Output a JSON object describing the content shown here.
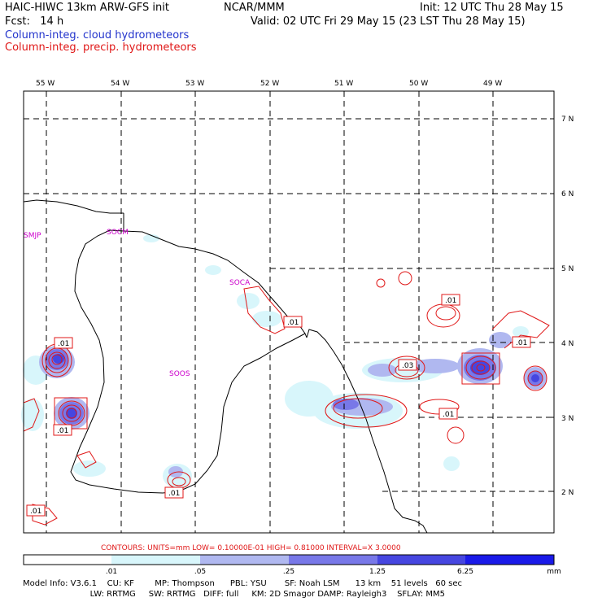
{
  "header": {
    "title": "HAIC-HIWC 13km ARW-GFS init",
    "org": "NCAR/MMM",
    "init": "Init: 12 UTC Thu 28 May 15",
    "fcst": "Fcst:   14 h",
    "valid": "Valid: 02 UTC Fri 29 May 15 (23 LST Thu 28 May 15)",
    "legend_cloud": "Column-integ. cloud hydrometeors",
    "legend_precip": "Column-integ. precip. hydrometeors"
  },
  "axes": {
    "lon_labels": [
      "55 W",
      "54 W",
      "53 W",
      "52 W",
      "51 W",
      "50 W",
      "49 W"
    ],
    "lat_labels": [
      "7 N",
      "6 N",
      "5 N",
      "4 N",
      "3 N",
      "2 N"
    ]
  },
  "stations": [
    "SMJP",
    "SOCM",
    "SOCA",
    "SOOS"
  ],
  "contour_labels": [
    ".01",
    ".01",
    ".01",
    ".01",
    ".03",
    ".01",
    ".01",
    ".01",
    ".01"
  ],
  "contours_info": "CONTOURS:  UNITS=mm  LOW= 0.10000E-01  HIGH= 0.81000      INTERVAL=X  3.0000",
  "colorbar": {
    "ticks": [
      ".01",
      ".05",
      ".25",
      "1.25",
      "6.25"
    ],
    "unit": "mm",
    "colors": [
      "#ffffff",
      "#d8f6fb",
      "#b0b8f0",
      "#7878e8",
      "#4646e0",
      "#1a1ae8"
    ]
  },
  "model_info": {
    "line1": "Model Info: V3.6.1    CU: KF        MP: Thompson      PBL: YSU       SF: Noah LSM      13 km    51 levels   60 sec",
    "line2": "                          LW: RRTMG     SW: RRTMG   DIFF: full     KM: 2D Smagor DAMP: Rayleigh3    SFLAY: MM5"
  }
}
